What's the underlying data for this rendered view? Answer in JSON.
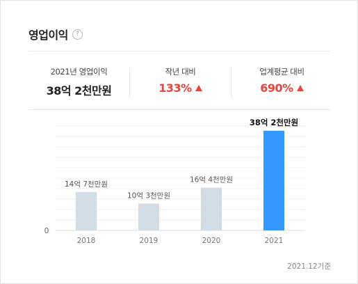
{
  "header": {
    "title": "영업이익",
    "help_glyph": "?"
  },
  "summary": {
    "current": {
      "label": "2021년 영업이익",
      "value": "38억 2천만원"
    },
    "yoy": {
      "label": "작년 대비",
      "value": "133%",
      "direction": "up"
    },
    "industry": {
      "label": "업계평균 대비",
      "value": "690%",
      "direction": "up"
    }
  },
  "chart_data": {
    "type": "bar",
    "categories": [
      "2018",
      "2019",
      "2020",
      "2021"
    ],
    "values": [
      14.7,
      10.3,
      16.4,
      38.2
    ],
    "value_labels": [
      "14억 7천만원",
      "10억 3천만원",
      "16억 4천만원",
      "38억 2천만원"
    ],
    "unit": "억원",
    "ylim": [
      0,
      40
    ],
    "y_ticks": [
      "0"
    ],
    "grid": true,
    "highlight_index": 3,
    "colors": {
      "bar": "#d3dde6",
      "highlight": "#3399ff",
      "up": "#e8453c"
    }
  },
  "footnote": "2021.12기준"
}
